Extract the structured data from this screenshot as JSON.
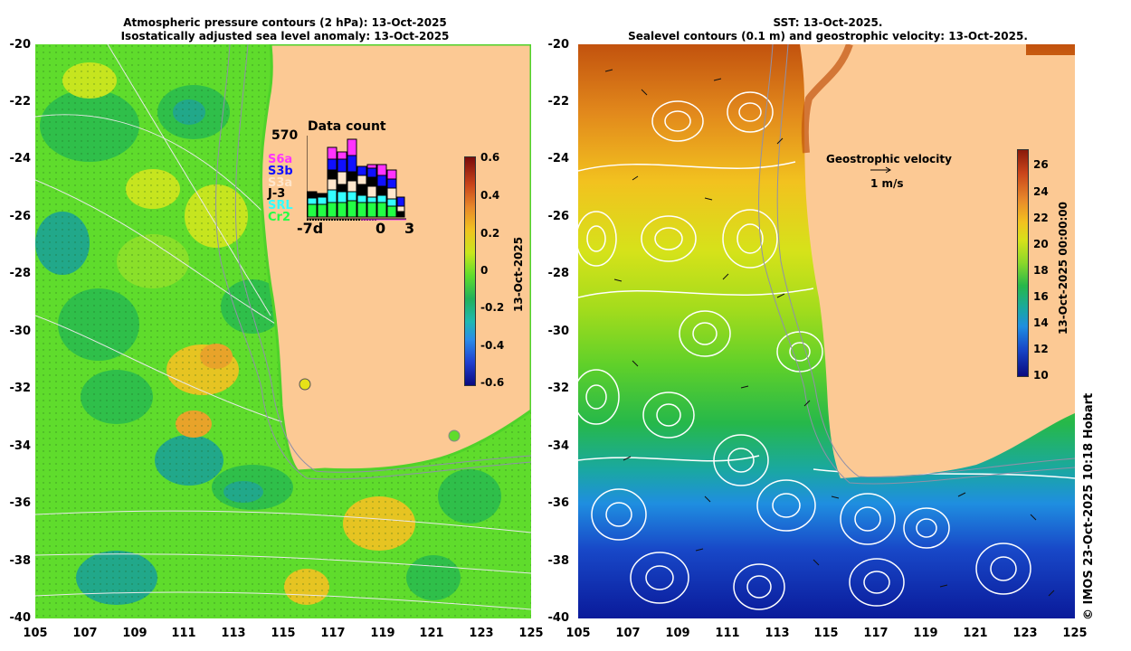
{
  "left_panel": {
    "title_line1": "Atmospheric pressure contours (2 hPa): 13-Oct-2025",
    "title_line2": "Isostatically adjusted sea level anomaly: 13-Oct-2025",
    "colorbar": {
      "ticks": [
        "0.6",
        "0.4",
        "0.2",
        "0",
        "-0.2",
        "-0.4",
        "-0.6"
      ],
      "label": "13-Oct-2025"
    },
    "data_count": {
      "title": "Data count",
      "max_label": "570",
      "x_labels": [
        "-7d",
        "0",
        "3"
      ],
      "missions": [
        {
          "name": "S6a",
          "color": "#ff33ff"
        },
        {
          "name": "S3b",
          "color": "#1010ff"
        },
        {
          "name": "S3a",
          "color": "#ffe6cc"
        },
        {
          "name": "J-3",
          "color": "#000000"
        },
        {
          "name": "SRL",
          "color": "#33ffff"
        },
        {
          "name": "Cr2",
          "color": "#22ff44"
        }
      ]
    }
  },
  "right_panel": {
    "title_line1": "SST: 13-Oct-2025.",
    "title_line2": "Sealevel contours (0.1 m) and geostrophic velocity: 13-Oct-2025.",
    "colorbar": {
      "ticks": [
        "26",
        "24",
        "22",
        "20",
        "18",
        "16",
        "14",
        "12",
        "10"
      ],
      "label": "13-Oct-2025 00:00:00"
    },
    "velocity_legend": {
      "title": "Geostrophic velocity",
      "scale": "1 m/s"
    }
  },
  "axes": {
    "lat_ticks": [
      "-20",
      "-22",
      "-24",
      "-26",
      "-28",
      "-30",
      "-32",
      "-34",
      "-36",
      "-38",
      "-40"
    ],
    "lon_ticks": [
      "105",
      "107",
      "109",
      "111",
      "113",
      "115",
      "117",
      "119",
      "121",
      "123",
      "125"
    ]
  },
  "credit": "© IMOS 23-Oct-2025 10:18 Hobart",
  "colors": {
    "land": "#fcc994",
    "contour": "#ffffff"
  }
}
